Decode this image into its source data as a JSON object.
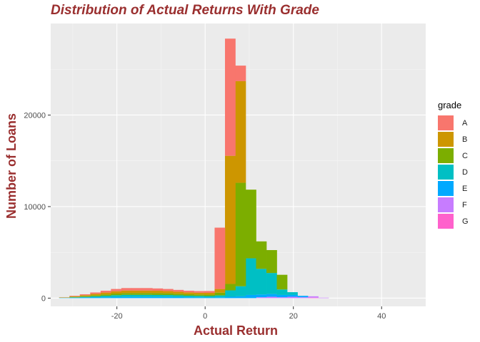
{
  "chart_data": {
    "type": "bar",
    "stacked": true,
    "title": "Distribution of Actual Returns With Grade",
    "xlabel": "Actual Return",
    "ylabel": "Number of Loans",
    "xlim": [
      -35,
      50
    ],
    "ylim": [
      -900,
      30000
    ],
    "x_ticks": [
      -20,
      0,
      20,
      40
    ],
    "x_tick_labels": [
      "-20",
      "0",
      "20",
      "40"
    ],
    "y_ticks": [
      0,
      10000,
      20000
    ],
    "y_tick_labels": [
      "0",
      "10000",
      "20000"
    ],
    "bin_width": 2.35,
    "bin_starts": [
      -33.1,
      -30.75,
      -28.4,
      -26.05,
      -23.7,
      -21.35,
      -19.0,
      -16.65,
      -14.3,
      -11.95,
      -9.6,
      -7.25,
      -4.9,
      -2.55,
      -0.2,
      2.15,
      4.5,
      6.85,
      9.2,
      11.55,
      13.9,
      16.25,
      18.6,
      20.95,
      23.3,
      25.65
    ],
    "legend_title": "grade",
    "legend_position": "right",
    "series": [
      {
        "name": "G",
        "color": "#FF61CC",
        "values": [
          0,
          0,
          0,
          0,
          0,
          0,
          0,
          0,
          0,
          0,
          0,
          0,
          0,
          0,
          0,
          0,
          0,
          0,
          0,
          0,
          0,
          0,
          0,
          0,
          50,
          0
        ]
      },
      {
        "name": "F",
        "color": "#C77CFF",
        "values": [
          0,
          0,
          0,
          0,
          0,
          0,
          0,
          0,
          0,
          0,
          0,
          0,
          0,
          0,
          0,
          0,
          0,
          0,
          0,
          100,
          150,
          100,
          150,
          100,
          150,
          50
        ]
      },
      {
        "name": "E",
        "color": "#00A9FF",
        "values": [
          20,
          40,
          60,
          80,
          100,
          120,
          130,
          130,
          130,
          130,
          130,
          120,
          100,
          90,
          80,
          100,
          150,
          200,
          350,
          300,
          300,
          250,
          200,
          150,
          0,
          0
        ]
      },
      {
        "name": "D",
        "color": "#00BFC4",
        "values": [
          20,
          50,
          80,
          120,
          160,
          200,
          230,
          230,
          230,
          220,
          210,
          190,
          170,
          160,
          150,
          200,
          700,
          1100,
          4000,
          2800,
          2300,
          600,
          300,
          0,
          0,
          0
        ]
      },
      {
        "name": "C",
        "color": "#7CAE00",
        "values": [
          20,
          50,
          80,
          120,
          150,
          180,
          200,
          200,
          200,
          200,
          190,
          170,
          160,
          150,
          150,
          300,
          700,
          11300,
          7500,
          3000,
          2500,
          1600,
          0,
          0,
          0,
          0
        ]
      },
      {
        "name": "B",
        "color": "#CD9600",
        "values": [
          20,
          60,
          100,
          150,
          200,
          250,
          270,
          270,
          270,
          260,
          240,
          220,
          200,
          190,
          200,
          400,
          14000,
          11100,
          0,
          0,
          0,
          0,
          0,
          0,
          0,
          0
        ]
      },
      {
        "name": "A",
        "color": "#F8766D",
        "values": [
          20,
          60,
          100,
          150,
          200,
          250,
          270,
          270,
          270,
          250,
          230,
          200,
          180,
          180,
          200,
          6700,
          12800,
          1700,
          0,
          0,
          0,
          0,
          0,
          0,
          0,
          0
        ]
      }
    ],
    "legend_order": [
      "A",
      "B",
      "C",
      "D",
      "E",
      "F",
      "G"
    ]
  }
}
